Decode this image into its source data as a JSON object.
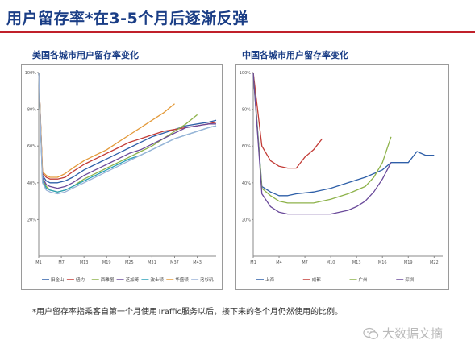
{
  "page": {
    "title": "用户留存率*在3-5个月后逐渐反弹",
    "footnote": "*用户留存率指乘客自第一个月使用Traffic服务以后，接下来的各个月仍然使用的比例。",
    "brand": "大数据文摘",
    "brand_icon": "wechat-icon",
    "accent_color": "#c0202a",
    "title_color": "#1b3e86"
  },
  "chart_data": [
    {
      "type": "line",
      "title": "美国各城市用户留存率变化",
      "xlabel": "",
      "ylabel": "",
      "x_ticks": [
        "M1",
        "M7",
        "M13",
        "M19",
        "M25",
        "M31",
        "M37",
        "M43"
      ],
      "y_ticks": [
        "20%",
        "40%",
        "60%",
        "80%",
        "100%"
      ],
      "ylim": [
        0,
        100
      ],
      "xlim": [
        1,
        48
      ],
      "grid": false,
      "legend_position": "bottom",
      "series": [
        {
          "name": "旧金山",
          "color": "#2e5fa8",
          "x": [
            1,
            2,
            3,
            4,
            6,
            8,
            10,
            13,
            16,
            19,
            22,
            25,
            28,
            31,
            34,
            37,
            40,
            43,
            46,
            48
          ],
          "y": [
            100,
            44,
            41,
            40,
            40,
            41,
            43,
            47,
            50,
            53,
            56,
            59,
            62,
            65,
            67,
            69,
            71,
            72,
            73,
            74
          ]
        },
        {
          "name": "纽约",
          "color": "#c23b36",
          "x": [
            1,
            2,
            3,
            4,
            6,
            8,
            10,
            13,
            16,
            19,
            22,
            25,
            28,
            31,
            34,
            37,
            40,
            43,
            46,
            48
          ],
          "y": [
            100,
            45,
            43,
            42,
            42,
            43,
            46,
            50,
            53,
            56,
            59,
            62,
            64,
            66,
            68,
            69,
            70,
            71,
            72,
            73
          ]
        },
        {
          "name": "西雅图",
          "color": "#8db24a",
          "x": [
            1,
            2,
            3,
            4,
            6,
            8,
            10,
            13,
            16,
            19,
            22,
            25,
            28,
            31,
            34,
            37,
            40,
            43
          ],
          "y": [
            100,
            42,
            38,
            36,
            35,
            36,
            38,
            42,
            45,
            48,
            51,
            54,
            57,
            60,
            64,
            68,
            72,
            77
          ]
        },
        {
          "name": "芝加哥",
          "color": "#6a4a9a",
          "x": [
            1,
            2,
            3,
            4,
            6,
            8,
            10,
            13,
            16,
            19,
            22,
            25,
            28,
            31,
            34,
            37,
            40,
            43,
            46,
            48
          ],
          "y": [
            100,
            43,
            39,
            38,
            37,
            38,
            40,
            44,
            47,
            50,
            53,
            56,
            58,
            61,
            64,
            67,
            70,
            71,
            72,
            72
          ]
        },
        {
          "name": "波士顿",
          "color": "#2aa0b8",
          "x": [
            1,
            2,
            3,
            4,
            6,
            8,
            10,
            13,
            16,
            19,
            22,
            25,
            28,
            31,
            34,
            37,
            40,
            43,
            46,
            48
          ],
          "y": [
            100,
            41,
            37,
            36,
            35,
            36,
            38,
            41,
            44,
            47,
            50,
            53,
            55,
            58,
            61,
            64,
            66,
            68,
            70,
            71
          ]
        },
        {
          "name": "华盛顿",
          "color": "#e39a3a",
          "x": [
            1,
            2,
            3,
            4,
            6,
            8,
            10,
            13,
            16,
            19,
            22,
            25,
            28,
            31,
            34,
            37
          ],
          "y": [
            100,
            46,
            44,
            43,
            43,
            45,
            48,
            52,
            55,
            58,
            62,
            66,
            70,
            74,
            78,
            83
          ]
        },
        {
          "name": "洛杉矶",
          "color": "#9bb3d8",
          "x": [
            1,
            2,
            3,
            4,
            6,
            8,
            10,
            13,
            16,
            19,
            22,
            25,
            28,
            31,
            34,
            37,
            40,
            43,
            46,
            48
          ],
          "y": [
            100,
            40,
            36,
            35,
            34,
            35,
            37,
            40,
            43,
            46,
            49,
            52,
            55,
            58,
            61,
            64,
            66,
            68,
            70,
            71
          ]
        }
      ]
    },
    {
      "type": "line",
      "title": "中国各城市用户留存率变化",
      "xlabel": "",
      "ylabel": "",
      "x_ticks": [
        "M1",
        "M4",
        "M7",
        "M10",
        "M13",
        "M16",
        "M19",
        "M22"
      ],
      "y_ticks": [
        "20%",
        "40%",
        "60%",
        "80%",
        "100%"
      ],
      "ylim": [
        0,
        100
      ],
      "xlim": [
        1,
        23
      ],
      "grid": false,
      "legend_position": "bottom",
      "series": [
        {
          "name": "上海",
          "color": "#2e5fa8",
          "x": [
            1,
            2,
            3,
            4,
            5,
            6,
            8,
            10,
            12,
            14,
            16,
            17,
            18,
            19,
            20,
            21,
            22
          ],
          "y": [
            100,
            38,
            35,
            33,
            33,
            34,
            35,
            37,
            40,
            43,
            47,
            51,
            51,
            51,
            57,
            55,
            55
          ]
        },
        {
          "name": "成都",
          "color": "#c23b36",
          "x": [
            1,
            2,
            3,
            4,
            5,
            6,
            7,
            8,
            9
          ],
          "y": [
            100,
            60,
            52,
            49,
            48,
            48,
            54,
            58,
            64
          ]
        },
        {
          "name": "广州",
          "color": "#8db24a",
          "x": [
            1,
            2,
            3,
            4,
            5,
            6,
            8,
            10,
            12,
            14,
            15,
            16,
            17
          ],
          "y": [
            100,
            37,
            33,
            30,
            29,
            29,
            29,
            31,
            34,
            38,
            43,
            51,
            65
          ]
        },
        {
          "name": "深圳",
          "color": "#6a4a9a",
          "x": [
            1,
            2,
            3,
            4,
            5,
            6,
            8,
            10,
            12,
            13,
            14,
            15,
            16,
            17
          ],
          "y": [
            100,
            34,
            27,
            24,
            23,
            23,
            23,
            23,
            25,
            27,
            30,
            35,
            42,
            51
          ]
        }
      ]
    }
  ]
}
